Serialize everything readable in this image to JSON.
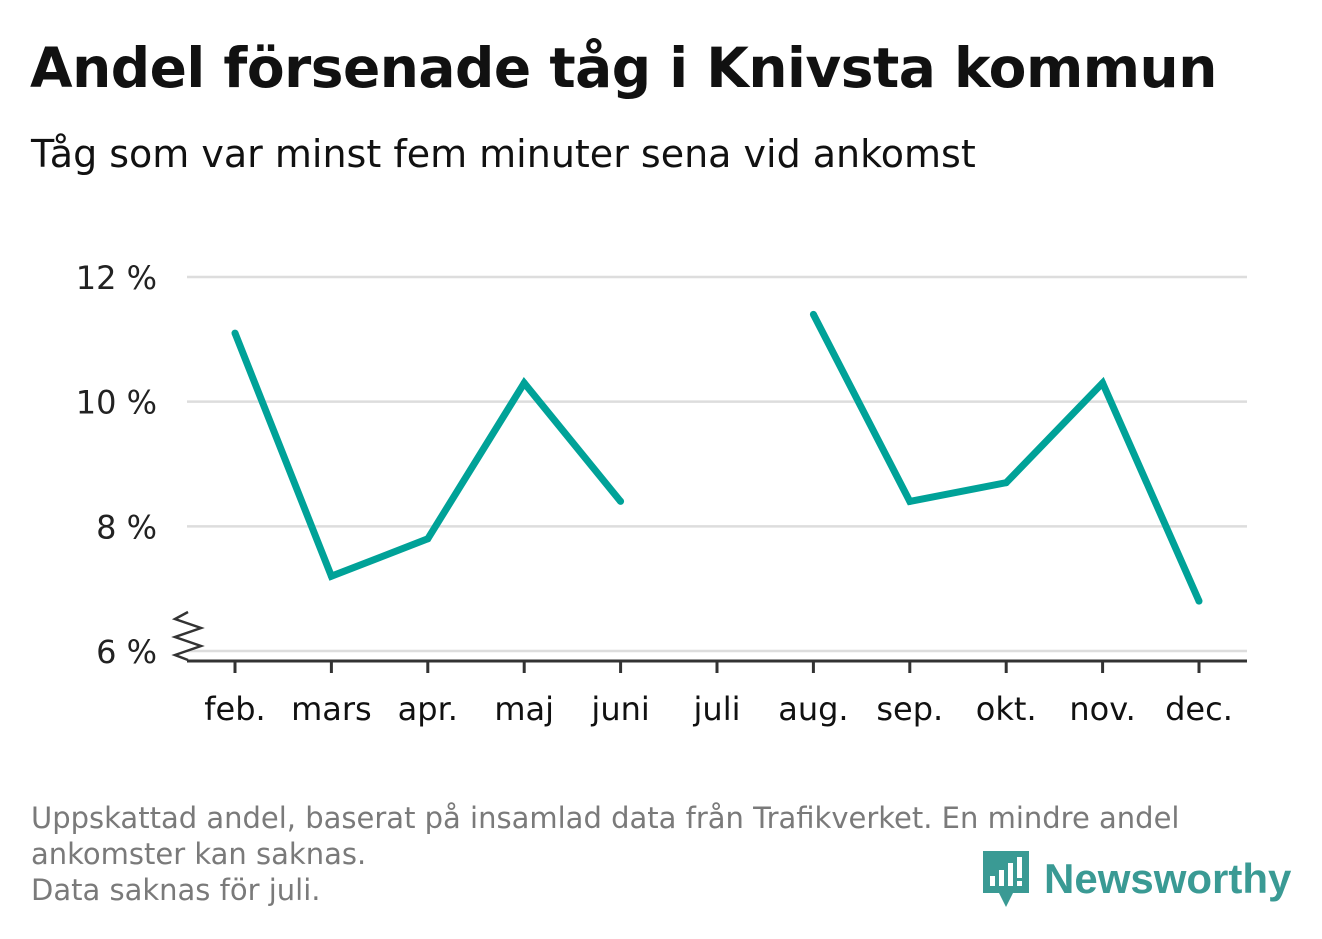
{
  "title": "Andel försenade tåg i Knivsta kommun",
  "subtitle": "Tåg som var minst fem minuter sena vid ankomst",
  "footnote": {
    "line1": "Uppskattad andel, baserat på insamlad data från Trafikverket. En mindre andel",
    "line2": "ankomster kan saknas.",
    "line3": "Data saknas för juli."
  },
  "brand": {
    "name": "Newsworthy",
    "icon": "newsworthy-logo-icon",
    "color": "#3a9a94"
  },
  "colors": {
    "series": "#00a298",
    "grid": "#dddddd",
    "axis": "#333333",
    "text": "#111111",
    "footnote": "#7a7a7a"
  },
  "chart_data": {
    "type": "line",
    "categories": [
      "feb.",
      "mars",
      "apr.",
      "maj",
      "juni",
      "juli",
      "aug.",
      "sep.",
      "okt.",
      "nov.",
      "dec."
    ],
    "series": [
      {
        "values": [
          11.1,
          7.2,
          7.8,
          10.3,
          8.4,
          null,
          11.4,
          8.4,
          8.7,
          10.3,
          6.8
        ]
      }
    ],
    "yticks": [
      6,
      8,
      10,
      12
    ],
    "ytick_labels": [
      "6 %",
      "8 %",
      "10 %",
      "12 %"
    ],
    "ylim": [
      6,
      12
    ],
    "axis_break": true,
    "grid": true,
    "xlabel": "",
    "ylabel": ""
  }
}
